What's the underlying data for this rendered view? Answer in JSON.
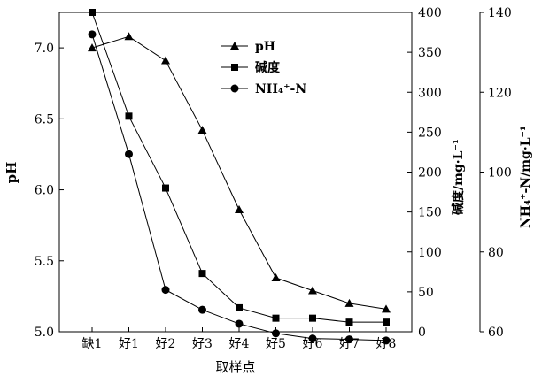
{
  "chart_data": {
    "type": "line",
    "xlabel": "取样点",
    "categories": [
      "缺1",
      "好1",
      "好2",
      "好3",
      "好4",
      "好5",
      "好6",
      "好7",
      "好8"
    ],
    "axes": {
      "left": {
        "label": "pH",
        "ylim": [
          5.0,
          7.25
        ],
        "ticks": [
          5.0,
          5.5,
          6.0,
          6.5,
          7.0
        ],
        "tick_labels": [
          "5.0",
          "5.5",
          "6.0",
          "6.5",
          "7.0"
        ]
      },
      "right1": {
        "label": "碱度/mg·L⁻¹",
        "ylim": [
          0,
          400
        ],
        "ticks": [
          0,
          50,
          100,
          150,
          200,
          250,
          300,
          350,
          400
        ],
        "tick_labels": [
          "0",
          "50",
          "100",
          "150",
          "200",
          "250",
          "300",
          "350",
          "400"
        ]
      },
      "right2": {
        "label": "NH₄⁺-N/mg·L⁻¹",
        "ylim": [
          60,
          140
        ],
        "ticks": [
          60,
          80,
          100,
          120,
          140
        ],
        "tick_labels": [
          "60",
          "80",
          "100",
          "120",
          "140"
        ]
      }
    },
    "series": [
      {
        "name": "pH",
        "axis": "left",
        "marker": "triangle",
        "values": [
          7.0,
          7.08,
          6.91,
          6.42,
          5.86,
          5.38,
          5.29,
          5.2,
          5.16
        ]
      },
      {
        "name": "碱度",
        "axis": "right1",
        "marker": "square",
        "values": [
          400,
          270,
          180,
          73,
          30,
          17,
          17,
          12,
          12
        ]
      },
      {
        "name": "NH₄⁺-N",
        "axis": "right2",
        "marker": "circle",
        "values": [
          134.5,
          104.5,
          70.5,
          65.5,
          62.0,
          59.6,
          58.3,
          58.1,
          57.8
        ]
      }
    ],
    "legend": {
      "position": "top-right"
    },
    "grid": false
  }
}
